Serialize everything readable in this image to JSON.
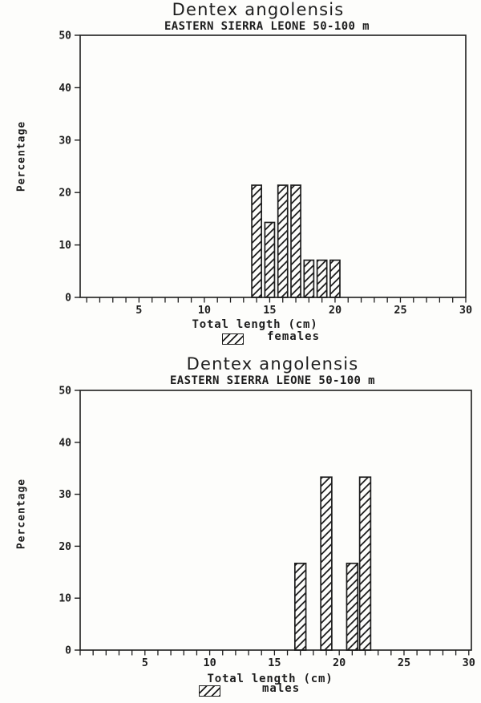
{
  "page": {
    "background": "#fdfdfb",
    "ink": "#1d1d1d"
  },
  "chart_data": [
    {
      "type": "bar",
      "title": "Dentex angolensis",
      "subtitle": "EASTERN SIERRA LEONE 50-100 m",
      "xlabel": "Total length (cm)",
      "ylabel": "Percentage",
      "legend": "females",
      "legend_swatch": "diagonal-hatch",
      "grid": false,
      "xlim": [
        0.5,
        30.0
      ],
      "ylim": [
        0,
        50
      ],
      "xticks_labeled": [
        5,
        10,
        15,
        20,
        25,
        30
      ],
      "xtick_minor_step": 1,
      "yticks": [
        0,
        10,
        20,
        30,
        40,
        50
      ],
      "bin_width_cm": 1,
      "x": [
        14,
        15,
        16,
        17,
        18,
        19,
        20
      ],
      "values": [
        21.4,
        14.3,
        21.4,
        21.4,
        7.1,
        7.1,
        7.1
      ]
    },
    {
      "type": "bar",
      "title": "Dentex angolensis",
      "subtitle": "EASTERN SIERRA LEONE 50-100 m",
      "xlabel": "Total length (cm)",
      "ylabel": "Percentage",
      "legend": "males",
      "legend_swatch": "diagonal-hatch",
      "grid": false,
      "xlim": [
        0.0,
        30.2
      ],
      "ylim": [
        0,
        50
      ],
      "xticks_labeled": [
        5,
        10,
        15,
        20,
        25,
        30
      ],
      "xtick_minor_step": 1,
      "yticks": [
        0,
        10,
        20,
        30,
        40,
        50
      ],
      "bin_width_cm": 1,
      "x": [
        17,
        19,
        21,
        22
      ],
      "values": [
        16.7,
        33.3,
        16.7,
        33.3
      ]
    }
  ]
}
